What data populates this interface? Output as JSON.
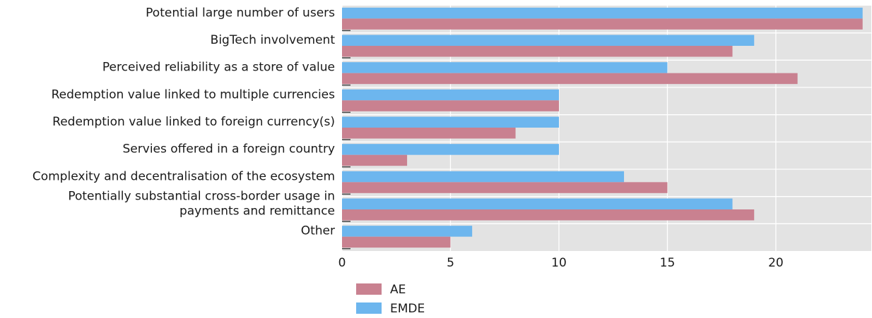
{
  "chart_data": {
    "type": "bar",
    "orientation": "horizontal",
    "categories": [
      [
        "Potential large number of users"
      ],
      [
        "BigTech involvement"
      ],
      [
        "Perceived reliability as a store of value"
      ],
      [
        "Redemption value linked to multiple currencies"
      ],
      [
        "Redemption value linked to foreign currency(s)"
      ],
      [
        "Servies offered in a foreign country"
      ],
      [
        "Complexity and decentralisation of the ecosystem"
      ],
      [
        "Potentially substantial cross-border usage in",
        "payments and remittance"
      ],
      [
        "Other"
      ]
    ],
    "series": [
      {
        "name": "EMDE",
        "color": "#6db6ee",
        "values": [
          24,
          19,
          15,
          10,
          10,
          10,
          13,
          18,
          6
        ]
      },
      {
        "name": "AE",
        "color": "#c98190",
        "values": [
          24,
          18,
          21,
          10,
          8,
          3,
          15,
          19,
          5
        ]
      }
    ],
    "xlim": [
      0,
      24.4
    ],
    "xticks": [
      0,
      5,
      10,
      15,
      20
    ],
    "grid": true,
    "background": "#e3e3e3",
    "legend": {
      "placement": "bottom-left",
      "entries": [
        {
          "label": "AE",
          "color": "#c98190"
        },
        {
          "label": "EMDE",
          "color": "#6db6ee"
        }
      ]
    }
  }
}
